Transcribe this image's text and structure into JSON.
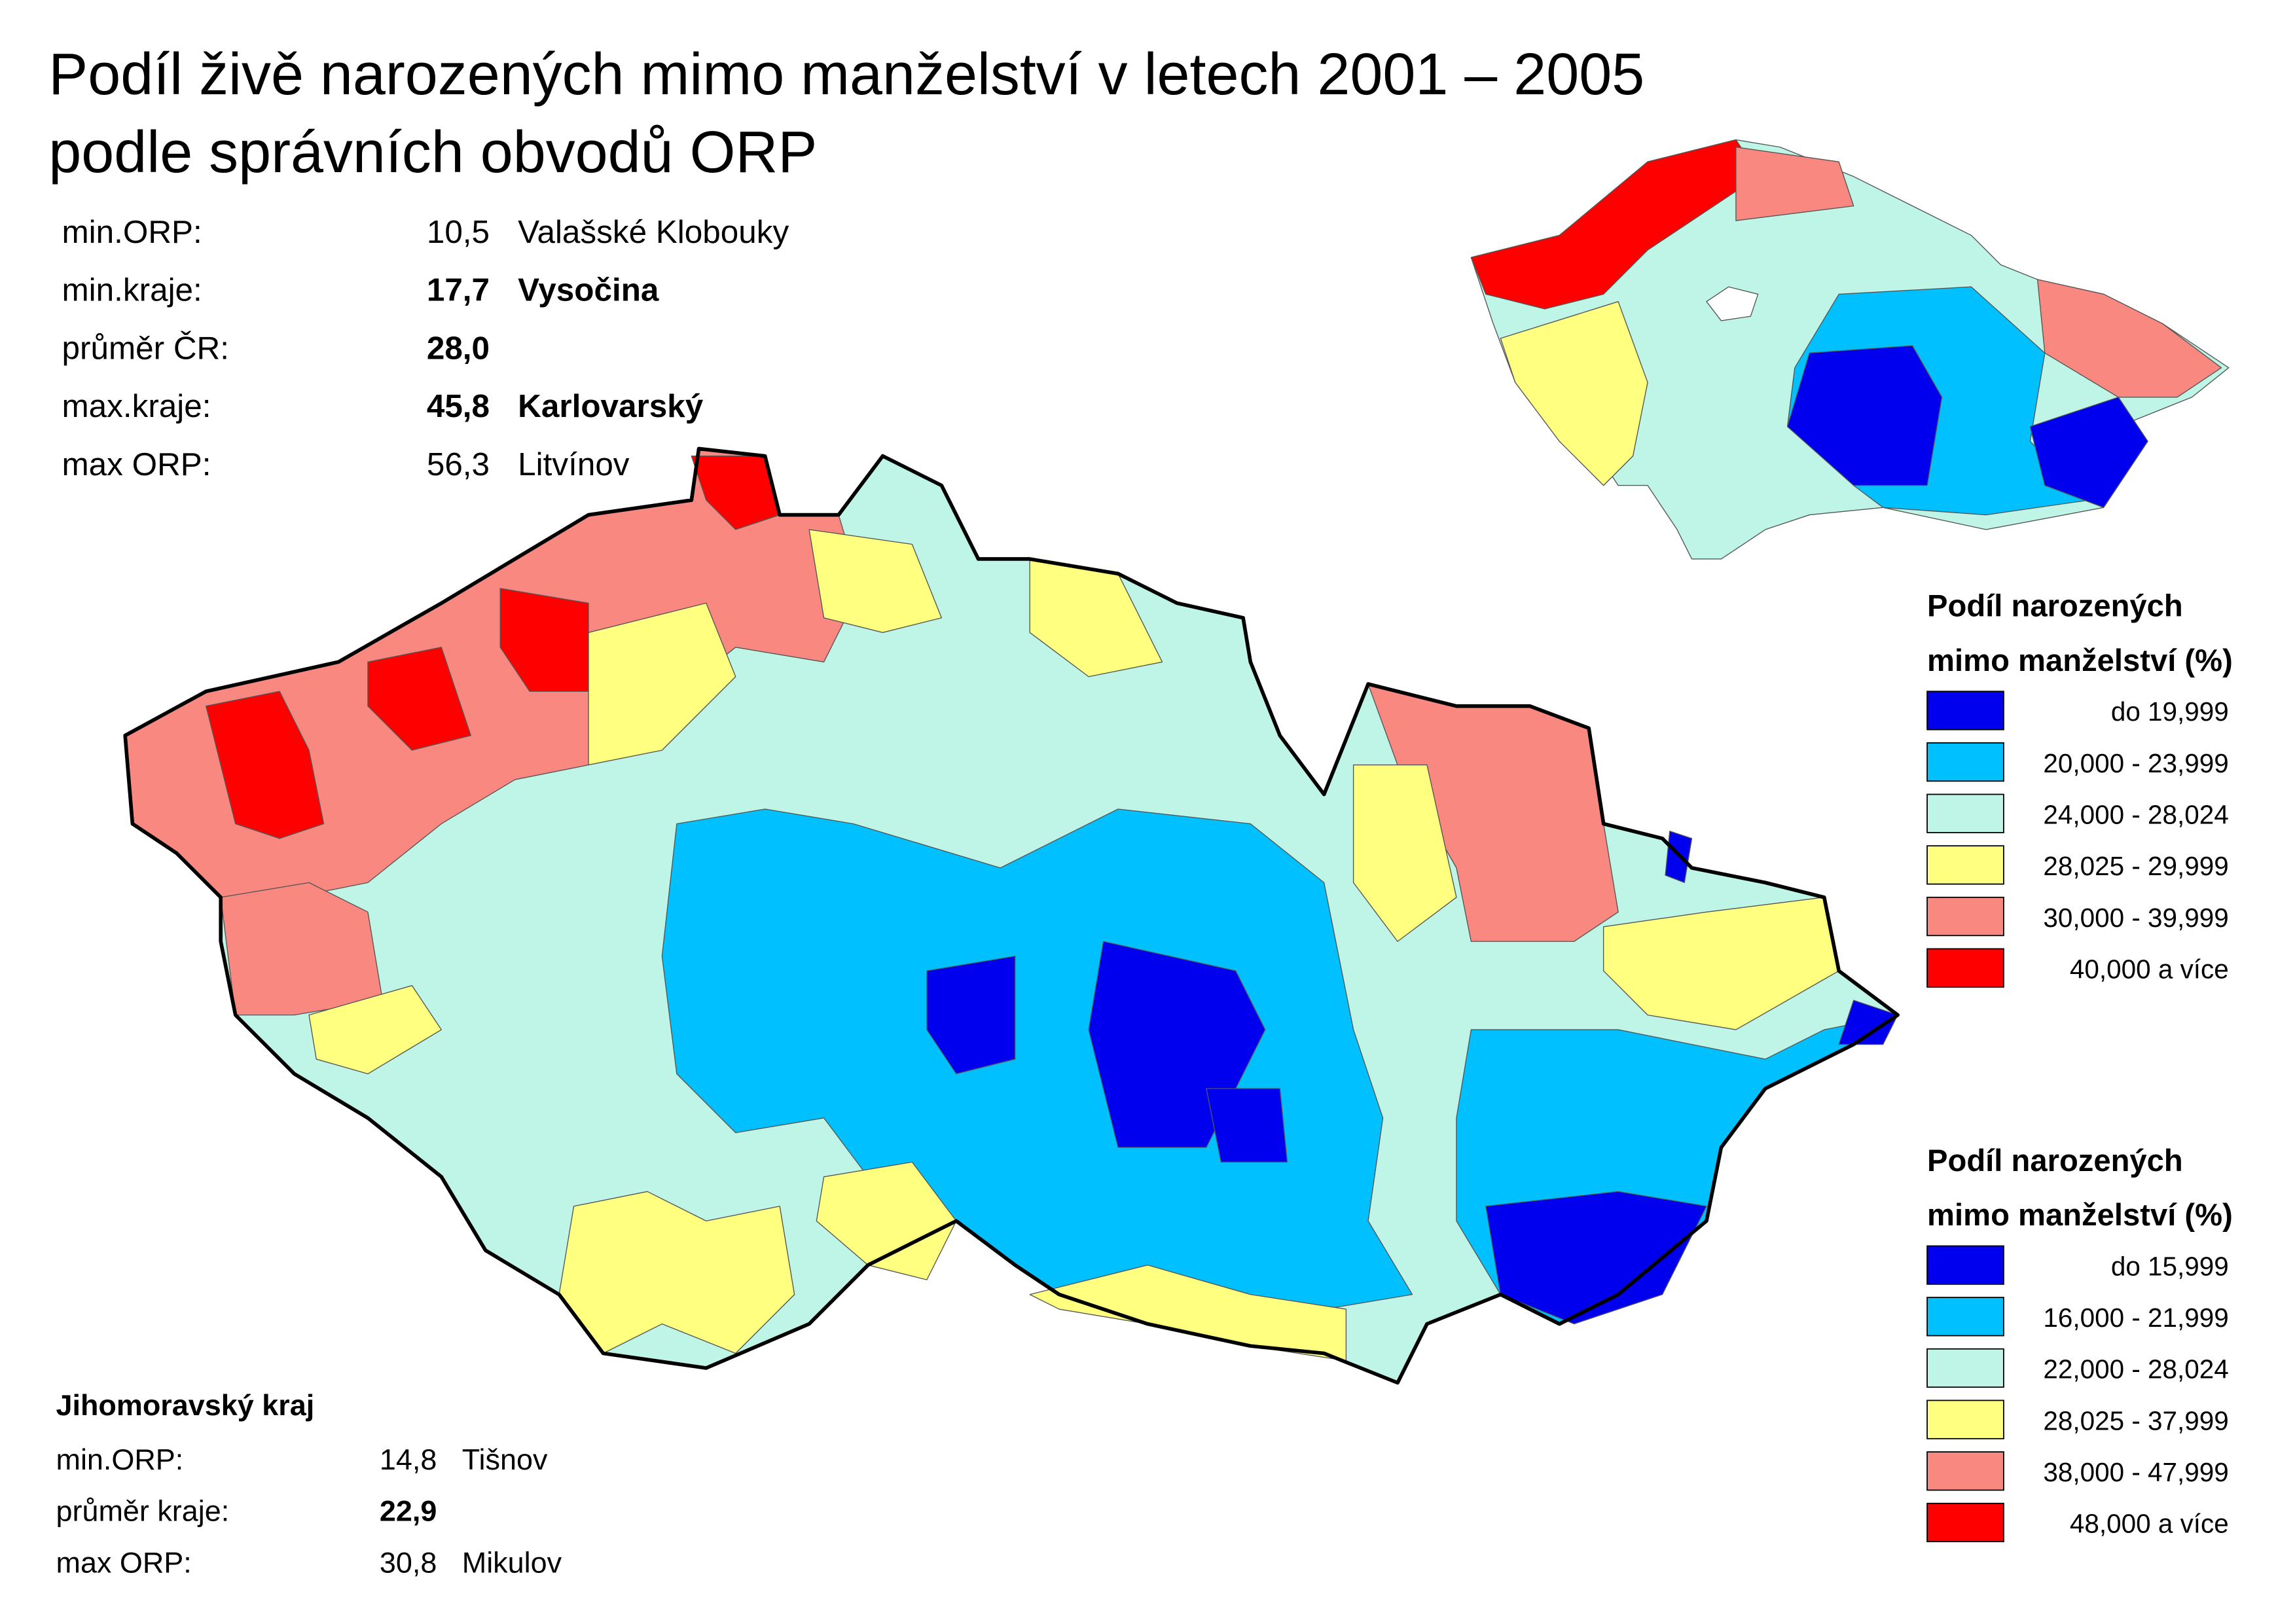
{
  "title": [
    "Podíl živě narozených mimo manželství v letech 2001 – 2005",
    "podle správních obvodů ORP"
  ],
  "stats": {
    "rows": [
      {
        "label": "min.ORP:",
        "value": "10,5",
        "name": "Valašské Klobouky",
        "bold": false
      },
      {
        "label": "min.kraje:",
        "value": "17,7",
        "name": "Vysočina",
        "bold": true
      },
      {
        "label": "průměr ČR:",
        "value": "28,0",
        "bold": true
      },
      {
        "label": "max.kraje:",
        "value": "45,8",
        "name": "Karlovarský",
        "bold": true
      },
      {
        "label": "max ORP:",
        "value": "56,3",
        "name": "Litvínov",
        "bold": false
      }
    ]
  },
  "regional_stats": {
    "title": "Jihomoravský kraj",
    "rows": [
      {
        "label": "min.ORP:",
        "value": "14,8",
        "name": "Tišnov",
        "bold": false
      },
      {
        "label": "průměr kraje:",
        "value": "22,9",
        "bold": true
      },
      {
        "label": "max ORP:",
        "value": "30,8",
        "name": "Mikulov",
        "bold": false
      }
    ]
  },
  "legends": [
    {
      "title": [
        "Podíl narozených",
        "mimo manželství (%)"
      ],
      "items": [
        {
          "label": "do 19,999",
          "color": "#0000ee"
        },
        {
          "label": "20,000 - 23,999",
          "color": "#00c0ff"
        },
        {
          "label": "24,000 - 28,024",
          "color": "#bff5e6"
        },
        {
          "label": "28,025 - 29,999",
          "color": "#ffff80"
        },
        {
          "label": "30,000 - 39,999",
          "color": "#f88880"
        },
        {
          "label": "40,000 a více",
          "color": "#ff0000"
        }
      ]
    },
    {
      "title": [
        "Podíl narozených",
        "mimo manželství (%)"
      ],
      "items": [
        {
          "label": "do 15,999",
          "color": "#0000ee"
        },
        {
          "label": "16,000 - 21,999",
          "color": "#00c0ff"
        },
        {
          "label": "22,000 - 28,024",
          "color": "#bff5e6"
        },
        {
          "label": "28,025 - 37,999",
          "color": "#ffff80"
        },
        {
          "label": "38,000 - 47,999",
          "color": "#f88880"
        },
        {
          "label": "48,000 a více",
          "color": "#ff0000"
        }
      ]
    }
  ]
}
